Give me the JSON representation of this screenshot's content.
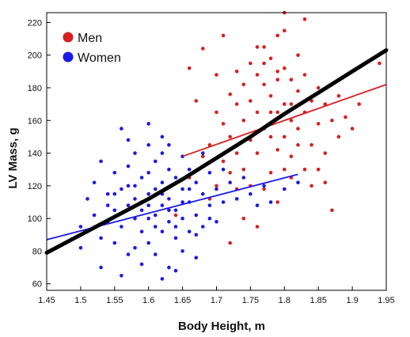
{
  "chart_data": {
    "type": "scatter",
    "xlabel": "Body Height, m",
    "ylabel": "LV Mass, g",
    "xlim": [
      1.45,
      1.95
    ],
    "ylim": [
      56,
      226
    ],
    "grid": false,
    "legend_position": "top-left",
    "x_ticks": [
      "1.45",
      "1.5",
      "1.55",
      "1.6",
      "1.65",
      "1.7",
      "1.75",
      "1.8",
      "1.85",
      "1.9",
      "1.95"
    ],
    "x_tick_values": [
      1.45,
      1.5,
      1.55,
      1.6,
      1.65,
      1.7,
      1.75,
      1.8,
      1.85,
      1.9,
      1.95
    ],
    "y_ticks": [
      "60",
      "80",
      "100",
      "120",
      "140",
      "160",
      "180",
      "200",
      "220"
    ],
    "y_tick_values": [
      60,
      80,
      100,
      120,
      140,
      160,
      180,
      200,
      220
    ],
    "series": [
      {
        "name": "Men",
        "color": "#d62020",
        "regression_line": {
          "x": [
            1.65,
            1.95
          ],
          "y": [
            138,
            182
          ]
        },
        "points": [
          [
            1.66,
            192
          ],
          [
            1.67,
            172
          ],
          [
            1.68,
            204
          ],
          [
            1.7,
            188
          ],
          [
            1.7,
            165
          ],
          [
            1.71,
            158
          ],
          [
            1.72,
            176
          ],
          [
            1.72,
            150
          ],
          [
            1.73,
            190
          ],
          [
            1.73,
            170
          ],
          [
            1.74,
            182
          ],
          [
            1.74,
            160
          ],
          [
            1.75,
            195
          ],
          [
            1.75,
            172
          ],
          [
            1.75,
            148
          ],
          [
            1.76,
            188
          ],
          [
            1.76,
            165
          ],
          [
            1.76,
            140
          ],
          [
            1.77,
            205
          ],
          [
            1.77,
            182
          ],
          [
            1.77,
            155
          ],
          [
            1.78,
            198
          ],
          [
            1.78,
            175
          ],
          [
            1.78,
            150
          ],
          [
            1.79,
            190
          ],
          [
            1.79,
            165
          ],
          [
            1.79,
            142
          ],
          [
            1.8,
            215
          ],
          [
            1.8,
            192
          ],
          [
            1.8,
            170
          ],
          [
            1.8,
            150
          ],
          [
            1.81,
            185
          ],
          [
            1.81,
            160
          ],
          [
            1.81,
            138
          ],
          [
            1.82,
            200
          ],
          [
            1.82,
            178
          ],
          [
            1.82,
            155
          ],
          [
            1.83,
            222
          ],
          [
            1.83,
            188
          ],
          [
            1.83,
            165
          ],
          [
            1.84,
            172
          ],
          [
            1.84,
            145
          ],
          [
            1.85,
            180
          ],
          [
            1.85,
            158
          ],
          [
            1.86,
            170
          ],
          [
            1.86,
            140
          ],
          [
            1.87,
            160
          ],
          [
            1.88,
            150
          ],
          [
            1.88,
            175
          ],
          [
            1.89,
            162
          ],
          [
            1.9,
            155
          ],
          [
            1.91,
            170
          ],
          [
            1.93,
            198
          ],
          [
            1.94,
            195
          ],
          [
            1.8,
            226
          ],
          [
            1.79,
            212
          ],
          [
            1.76,
            205
          ],
          [
            1.71,
            212
          ],
          [
            1.74,
            130
          ],
          [
            1.72,
            128
          ],
          [
            1.75,
            120
          ],
          [
            1.77,
            118
          ],
          [
            1.78,
            128
          ],
          [
            1.79,
            110
          ],
          [
            1.81,
            125
          ],
          [
            1.8,
            130
          ],
          [
            1.83,
            130
          ],
          [
            1.84,
            120
          ],
          [
            1.86,
            122
          ],
          [
            1.87,
            105
          ],
          [
            1.85,
            130
          ],
          [
            1.7,
            120
          ],
          [
            1.68,
            138
          ],
          [
            1.69,
            145
          ],
          [
            1.71,
            135
          ],
          [
            1.73,
            140
          ],
          [
            1.73,
            118
          ],
          [
            1.69,
            112
          ],
          [
            1.66,
            125
          ],
          [
            1.64,
            102
          ],
          [
            1.74,
            100
          ],
          [
            1.76,
            95
          ],
          [
            1.72,
            85
          ],
          [
            1.78,
            165
          ],
          [
            1.79,
            185
          ],
          [
            1.77,
            195
          ],
          [
            1.82,
            145
          ],
          [
            1.81,
            170
          ]
        ]
      },
      {
        "name": "Women",
        "color": "#1a1ae6",
        "regression_line": {
          "x": [
            1.45,
            1.82
          ],
          "y": [
            87,
            127
          ]
        },
        "points": [
          [
            1.5,
            82
          ],
          [
            1.5,
            95
          ],
          [
            1.51,
            112
          ],
          [
            1.52,
            122
          ],
          [
            1.52,
            102
          ],
          [
            1.53,
            135
          ],
          [
            1.53,
            88
          ],
          [
            1.54,
            115
          ],
          [
            1.54,
            98
          ],
          [
            1.55,
            128
          ],
          [
            1.55,
            105
          ],
          [
            1.55,
            85
          ],
          [
            1.56,
            155
          ],
          [
            1.56,
            118
          ],
          [
            1.56,
            95
          ],
          [
            1.57,
            132
          ],
          [
            1.57,
            108
          ],
          [
            1.57,
            78
          ],
          [
            1.58,
            140
          ],
          [
            1.58,
            120
          ],
          [
            1.58,
            100
          ],
          [
            1.58,
            82
          ],
          [
            1.59,
            125
          ],
          [
            1.59,
            110
          ],
          [
            1.59,
            92
          ],
          [
            1.6,
            145
          ],
          [
            1.6,
            128
          ],
          [
            1.6,
            115
          ],
          [
            1.6,
            100
          ],
          [
            1.6,
            85
          ],
          [
            1.61,
            135
          ],
          [
            1.61,
            118
          ],
          [
            1.61,
            102
          ],
          [
            1.61,
            78
          ],
          [
            1.62,
            140
          ],
          [
            1.62,
            122
          ],
          [
            1.62,
            108
          ],
          [
            1.62,
            92
          ],
          [
            1.63,
            130
          ],
          [
            1.63,
            112
          ],
          [
            1.63,
            98
          ],
          [
            1.63,
            70
          ],
          [
            1.64,
            125
          ],
          [
            1.64,
            105
          ],
          [
            1.64,
            88
          ],
          [
            1.65,
            138
          ],
          [
            1.65,
            118
          ],
          [
            1.65,
            100
          ],
          [
            1.65,
            80
          ],
          [
            1.66,
            130
          ],
          [
            1.66,
            110
          ],
          [
            1.66,
            92
          ],
          [
            1.67,
            122
          ],
          [
            1.67,
            102
          ],
          [
            1.68,
            140
          ],
          [
            1.68,
            115
          ],
          [
            1.68,
            95
          ],
          [
            1.69,
            128
          ],
          [
            1.69,
            108
          ],
          [
            1.7,
            118
          ],
          [
            1.7,
            98
          ],
          [
            1.71,
            130
          ],
          [
            1.71,
            110
          ],
          [
            1.72,
            122
          ],
          [
            1.73,
            112
          ],
          [
            1.74,
            125
          ],
          [
            1.75,
            115
          ],
          [
            1.76,
            108
          ],
          [
            1.77,
            120
          ],
          [
            1.78,
            110
          ],
          [
            1.8,
            118
          ],
          [
            1.82,
            122
          ],
          [
            1.53,
            70
          ],
          [
            1.56,
            65
          ],
          [
            1.59,
            72
          ],
          [
            1.62,
            63
          ],
          [
            1.64,
            68
          ],
          [
            1.67,
            76
          ],
          [
            1.6,
            158
          ],
          [
            1.62,
            150
          ],
          [
            1.57,
            148
          ],
          [
            1.63,
            145
          ],
          [
            1.58,
            112
          ],
          [
            1.61,
            95
          ],
          [
            1.59,
            105
          ],
          [
            1.63,
            105
          ],
          [
            1.65,
            110
          ],
          [
            1.67,
            90
          ],
          [
            1.69,
            100
          ],
          [
            1.57,
            120
          ],
          [
            1.55,
            115
          ],
          [
            1.54,
            108
          ],
          [
            1.66,
            118
          ],
          [
            1.6,
            108
          ],
          [
            1.62,
            115
          ],
          [
            1.64,
            95
          ]
        ]
      }
    ],
    "fit_curve": {
      "color": "#000000",
      "x": [
        1.45,
        1.5,
        1.55,
        1.6,
        1.65,
        1.7,
        1.75,
        1.8,
        1.85,
        1.9,
        1.95
      ],
      "y": [
        79,
        90,
        101,
        112,
        124,
        137,
        150,
        164,
        177,
        190,
        203
      ]
    }
  }
}
